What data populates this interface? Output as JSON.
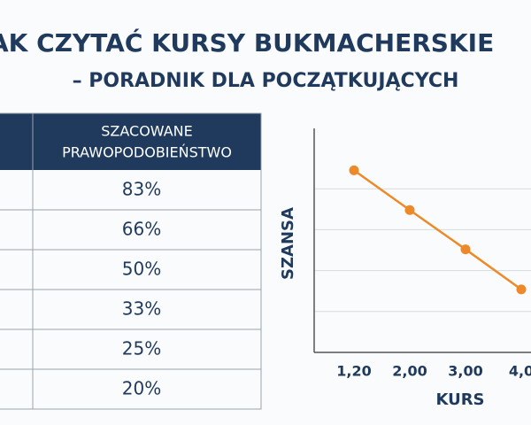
{
  "header": {
    "title": "AK CZYTAĆ KURSY BUKMACHERSKIE",
    "subtitle": "– PORADNIK DLA POCZĄTKUJĄCYCH"
  },
  "table": {
    "header": [
      "SZACOWANE",
      "PRAWOPODOBIEŃSTWO"
    ],
    "rows": [
      "83%",
      "66%",
      "50%",
      "33%",
      "25%",
      "20%"
    ]
  },
  "chart_data": {
    "type": "line",
    "ylabel": "SZANSA",
    "xlabel": "KURS",
    "categories": [
      "1,20",
      "2,00",
      "3,00",
      "4,0"
    ],
    "values": [
      4.45,
      3.48,
      2.52,
      1.54
    ],
    "color": "#ec8a2a",
    "ylim": [
      0,
      5
    ],
    "gridlines": [
      1,
      2,
      3,
      4
    ],
    "grid": true
  }
}
